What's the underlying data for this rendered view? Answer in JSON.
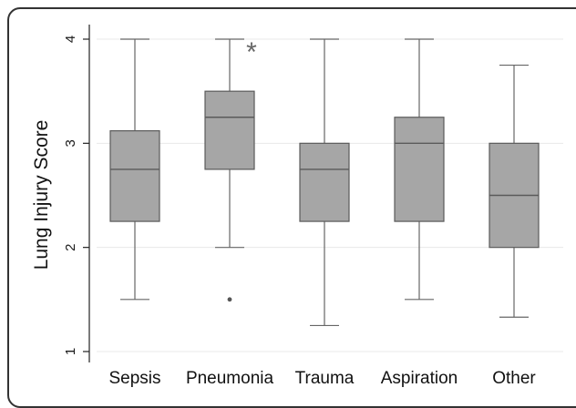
{
  "chart_data": {
    "type": "box",
    "ylabel": "Lung Injury Score",
    "xlabel": "",
    "ylim": [
      0.85,
      4.15
    ],
    "yticks": [
      1,
      2,
      3,
      4
    ],
    "grid": true,
    "categories": [
      "Sepsis",
      "Pneumonia",
      "Trauma",
      "Aspiration",
      "Other"
    ],
    "boxes": [
      {
        "min": 1.5,
        "q1": 2.25,
        "median": 2.75,
        "q3": 3.12,
        "max": 4.0,
        "outliers": []
      },
      {
        "min": 2.0,
        "q1": 2.75,
        "median": 3.25,
        "q3": 3.5,
        "max": 4.0,
        "outliers": [
          1.5
        ]
      },
      {
        "min": 1.25,
        "q1": 2.25,
        "median": 2.75,
        "q3": 3.0,
        "max": 4.0,
        "outliers": []
      },
      {
        "min": 1.5,
        "q1": 2.25,
        "median": 3.0,
        "q3": 3.25,
        "max": 4.0,
        "outliers": []
      },
      {
        "min": 1.33,
        "q1": 2.0,
        "median": 2.5,
        "q3": 3.0,
        "max": 3.75,
        "outliers": []
      }
    ],
    "annotations": [
      {
        "text": "*",
        "category": "Pneumonia",
        "y": 3.93
      }
    ],
    "colors": {
      "box_fill": "#a6a6a6",
      "box_stroke": "#5a5a5a",
      "grid": "#e8e8e8",
      "whisker": "#666666"
    }
  }
}
